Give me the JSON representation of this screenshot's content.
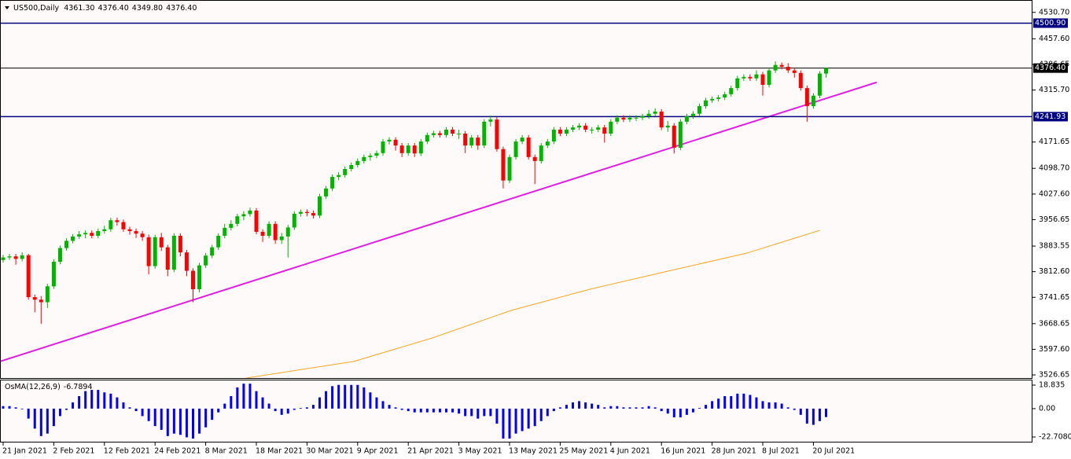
{
  "chart_data": {
    "type": "candlestick",
    "header": {
      "symbol": "US500,Daily",
      "ohlc": [
        {
          "value": 4361.3,
          "label": "4361.30"
        },
        {
          "value": 4376.4,
          "label": "4376.40"
        },
        {
          "value": 4349.8,
          "label": "4349.80"
        },
        {
          "value": 4376.4,
          "label": "4376.40"
        }
      ]
    },
    "categories": [
      "21 Jan 2021",
      null,
      null,
      null,
      null,
      null,
      null,
      null,
      "2 Feb 2021",
      null,
      null,
      null,
      null,
      null,
      null,
      null,
      "12 Feb 2021",
      null,
      null,
      null,
      null,
      null,
      null,
      null,
      "24 Feb 2021",
      null,
      null,
      null,
      null,
      null,
      null,
      null,
      "8 Mar 2021",
      null,
      null,
      null,
      null,
      null,
      null,
      null,
      "18 Mar 2021",
      null,
      null,
      null,
      null,
      null,
      null,
      null,
      "30 Mar 2021",
      null,
      null,
      null,
      null,
      null,
      null,
      null,
      "9 Apr 2021",
      null,
      null,
      null,
      null,
      null,
      null,
      null,
      "21 Apr 2021",
      null,
      null,
      null,
      null,
      null,
      null,
      null,
      "3 May 2021",
      null,
      null,
      null,
      null,
      null,
      null,
      null,
      "13 May 2021",
      null,
      null,
      null,
      null,
      null,
      null,
      null,
      "25 May 2021",
      null,
      null,
      null,
      null,
      null,
      null,
      null,
      "4 Jun 2021",
      null,
      null,
      null,
      null,
      null,
      null,
      null,
      "16 Jun 2021",
      null,
      null,
      null,
      null,
      null,
      null,
      null,
      "28 Jun 2021",
      null,
      null,
      null,
      null,
      null,
      null,
      null,
      "8 Jul 2021",
      null,
      null,
      null,
      null,
      null,
      null,
      null,
      "20 Jul 2021",
      null,
      null
    ],
    "open": [
      3845,
      3852,
      3855,
      3848,
      3858,
      3742,
      3735,
      3728,
      3772,
      3840,
      3878,
      3898,
      3910,
      3916,
      3920,
      3912,
      3925,
      3930,
      3955,
      3950,
      3930,
      3925,
      3918,
      3908,
      3828,
      3908,
      3880,
      3818,
      3912,
      3866,
      3815,
      3764,
      3830,
      3857,
      3880,
      3912,
      3934,
      3945,
      3966,
      3972,
      3982,
      3923,
      3912,
      3945,
      3900,
      3910,
      3935,
      3973,
      3978,
      3975,
      3968,
      4021,
      4043,
      4075,
      4080,
      4097,
      4108,
      4119,
      4130,
      4134,
      4141,
      4173,
      4178,
      4162,
      4141,
      4162,
      4140,
      4173,
      4191,
      4196,
      4191,
      4206,
      4195,
      4195,
      4162,
      4184,
      4162,
      4228,
      4234,
      4152,
      4065,
      4130,
      4173,
      4184,
      4130,
      4119,
      4162,
      4173,
      4206,
      4195,
      4206,
      4212,
      4217,
      4206,
      4206,
      4212,
      4195,
      4228,
      4239,
      4234,
      4239,
      4239,
      4243,
      4250,
      4256,
      4212,
      4217,
      4156,
      4228,
      4243,
      4250,
      4271,
      4287,
      4291,
      4295,
      4304,
      4321,
      4348,
      4352,
      4348,
      4359,
      4330,
      4370,
      4385,
      4380,
      4370,
      4363,
      4321,
      4271,
      4300,
      4361.3
    ],
    "high": [
      3859,
      3862,
      3862,
      3866,
      3862,
      3749,
      3745,
      3779,
      3847,
      3885,
      3905,
      3917,
      3925,
      3927,
      3927,
      3932,
      3940,
      3962,
      3962,
      3957,
      3937,
      3932,
      3925,
      3915,
      3915,
      3920,
      3887,
      3919,
      3919,
      3873,
      3822,
      3837,
      3864,
      3887,
      3919,
      3945,
      3955,
      3973,
      3980,
      3990,
      3989,
      3930,
      3952,
      3952,
      3920,
      3942,
      3980,
      3985,
      3985,
      3982,
      4028,
      4050,
      4082,
      4088,
      4104,
      4115,
      4126,
      4137,
      4141,
      4148,
      4180,
      4185,
      4185,
      4169,
      4169,
      4169,
      4180,
      4198,
      4203,
      4203,
      4213,
      4213,
      4206,
      4202,
      4191,
      4191,
      4235,
      4245,
      4241,
      4159,
      4137,
      4180,
      4191,
      4191,
      4137,
      4169,
      4180,
      4213,
      4213,
      4213,
      4219,
      4224,
      4224,
      4213,
      4219,
      4219,
      4235,
      4246,
      4246,
      4246,
      4246,
      4250,
      4260,
      4265,
      4263,
      4230,
      4224,
      4235,
      4250,
      4257,
      4278,
      4294,
      4298,
      4302,
      4311,
      4328,
      4355,
      4359,
      4359,
      4370,
      4366,
      4377,
      4395,
      4392,
      4390,
      4377,
      4370,
      4328,
      4307,
      4368,
      4376.4
    ],
    "low": [
      3838,
      3845,
      3832,
      3841,
      3735,
      3700,
      3668,
      3712,
      3765,
      3833,
      3871,
      3891,
      3903,
      3905,
      3905,
      3905,
      3918,
      3923,
      3940,
      3923,
      3915,
      3906,
      3898,
      3805,
      3821,
      3870,
      3800,
      3811,
      3855,
      3800,
      3728,
      3755,
      3823,
      3850,
      3873,
      3905,
      3927,
      3938,
      3955,
      3965,
      3916,
      3895,
      3905,
      3890,
      3890,
      3852,
      3928,
      3965,
      3966,
      3960,
      3961,
      4014,
      4036,
      4066,
      4073,
      4090,
      4101,
      4112,
      4120,
      4127,
      4134,
      4165,
      4148,
      4130,
      4134,
      4130,
      4133,
      4166,
      4184,
      4184,
      4184,
      4188,
      4180,
      4141,
      4155,
      4150,
      4155,
      4215,
      4145,
      4043,
      4058,
      4123,
      4166,
      4123,
      4055,
      4112,
      4155,
      4166,
      4188,
      4188,
      4199,
      4205,
      4199,
      4195,
      4199,
      4170,
      4188,
      4221,
      4227,
      4227,
      4230,
      4232,
      4236,
      4243,
      4205,
      4200,
      4140,
      4149,
      4221,
      4236,
      4243,
      4264,
      4280,
      4284,
      4288,
      4297,
      4314,
      4341,
      4341,
      4341,
      4300,
      4323,
      4363,
      4373,
      4363,
      4350,
      4314,
      4228,
      4264,
      4293,
      4349.8
    ],
    "close": [
      3852,
      3855,
      3848,
      3858,
      3742,
      3735,
      3728,
      3772,
      3840,
      3878,
      3898,
      3910,
      3916,
      3920,
      3912,
      3925,
      3930,
      3955,
      3950,
      3930,
      3925,
      3918,
      3908,
      3828,
      3908,
      3880,
      3818,
      3912,
      3866,
      3815,
      3764,
      3830,
      3857,
      3880,
      3912,
      3934,
      3945,
      3966,
      3972,
      3982,
      3923,
      3912,
      3945,
      3900,
      3910,
      3935,
      3973,
      3978,
      3975,
      3968,
      4021,
      4043,
      4075,
      4080,
      4097,
      4108,
      4119,
      4130,
      4134,
      4141,
      4173,
      4178,
      4162,
      4141,
      4162,
      4140,
      4173,
      4191,
      4196,
      4191,
      4206,
      4195,
      4195,
      4162,
      4184,
      4162,
      4228,
      4234,
      4152,
      4065,
      4130,
      4173,
      4184,
      4130,
      4119,
      4162,
      4173,
      4206,
      4195,
      4206,
      4212,
      4217,
      4206,
      4206,
      4212,
      4195,
      4228,
      4239,
      4234,
      4239,
      4239,
      4243,
      4250,
      4256,
      4212,
      4217,
      4156,
      4228,
      4243,
      4250,
      4271,
      4287,
      4291,
      4295,
      4304,
      4321,
      4348,
      4352,
      4348,
      4359,
      4330,
      4370,
      4385,
      4380,
      4370,
      4363,
      4321,
      4271,
      4300,
      4361.3,
      4376.4
    ],
    "up_color": "#00b400",
    "down_color": "#ff0000",
    "ylim": [
      3518,
      4565
    ],
    "yticks": [
      {
        "value": 4530.7,
        "label": "4530.70"
      },
      {
        "value": 4457.6,
        "label": "4457.60"
      },
      {
        "value": 4386.65,
        "label": "4386.65"
      },
      {
        "value": 4315.7,
        "label": "4315.70"
      },
      {
        "value": 4171.65,
        "label": "4171.65"
      },
      {
        "value": 4098.7,
        "label": "4098.70"
      },
      {
        "value": 4027.6,
        "label": "4027.60"
      },
      {
        "value": 3956.65,
        "label": "3956.65"
      },
      {
        "value": 3883.55,
        "label": "3883.55"
      },
      {
        "value": 3812.6,
        "label": "3812.60"
      },
      {
        "value": 3741.65,
        "label": "3741.65"
      },
      {
        "value": 3668.65,
        "label": "3668.65"
      },
      {
        "value": 3597.6,
        "label": "3597.60"
      },
      {
        "value": 3526.65,
        "label": "3526.65"
      }
    ],
    "price_lines": [
      {
        "value": 4500.9,
        "label": "4500.90",
        "color": "#000080"
      },
      {
        "value": 4376.4,
        "label": "4376.40",
        "color": "#000000"
      },
      {
        "value": 4241.93,
        "label": "4241.93",
        "color": "#000080"
      }
    ],
    "moving_average": {
      "color": "#f5a623",
      "x": [
        38.4,
        55.4,
        67.8,
        80.2,
        92.7,
        105,
        117.5,
        129
      ],
      "values": [
        3518,
        3564,
        3629,
        3705,
        3764,
        3814,
        3864,
        3927
      ]
    },
    "trendline": {
      "color": "#e020e0",
      "x": [
        -0.5,
        138
      ],
      "values": [
        3564,
        4337
      ]
    },
    "indicator": {
      "name": "OsMA(12,26,9)",
      "value": -6.7894,
      "color": "#0000ff",
      "ylim": [
        -26.5,
        22.6
      ],
      "yticks": [
        18.835,
        {
          "value": 0,
          "label": "0.00"
        },
        {
          "value": -22.708,
          "label": "-22.7080"
        }
      ],
      "values": [
        2,
        2,
        1,
        0,
        -8,
        -16,
        -22,
        -20,
        -14,
        -6,
        -1,
        5,
        10,
        14,
        15,
        15,
        13,
        12,
        9,
        5,
        1,
        -2,
        -6,
        -10,
        -14,
        -17,
        -22,
        -20,
        -21,
        -23,
        -24,
        -20,
        -15,
        -9,
        -3,
        4,
        10,
        17,
        20,
        20,
        14,
        9,
        4,
        -2,
        -5,
        -4,
        -1,
        0.5,
        1,
        3,
        9,
        14,
        18,
        19,
        19,
        19,
        19,
        17,
        13,
        9,
        6,
        3,
        1,
        -1,
        -2,
        -3,
        -3,
        -3,
        -3,
        -3,
        -3,
        -3,
        -4,
        -6,
        -6,
        -8,
        -6,
        -6,
        -12,
        -24,
        -24,
        -20,
        -18,
        -16,
        -14,
        -10,
        -6,
        -2,
        1,
        3,
        5,
        6,
        5,
        4,
        3,
        1,
        2,
        2,
        1,
        1,
        1,
        1,
        2,
        1,
        -2,
        -4,
        -7,
        -7,
        -5,
        -3,
        0.5,
        3,
        6,
        8,
        10,
        10,
        12,
        12,
        11,
        9,
        6,
        5,
        5,
        4,
        1,
        -1,
        -5,
        -12,
        -13,
        -10,
        -6.7894
      ]
    }
  }
}
